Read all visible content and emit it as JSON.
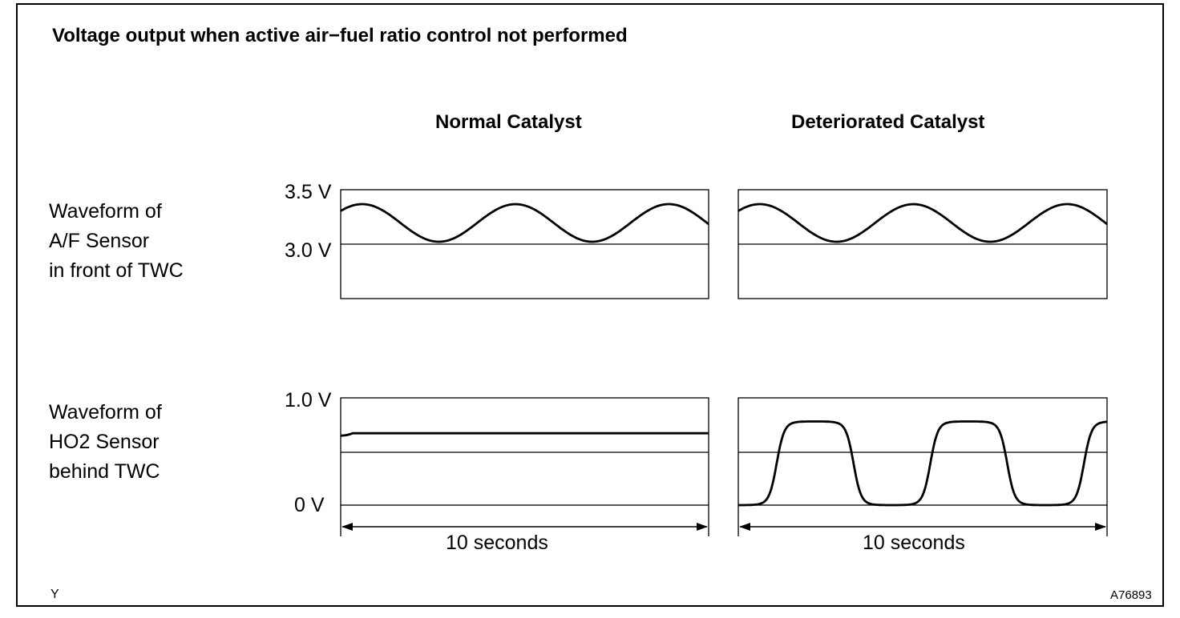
{
  "title": "Voltage output when active air−fuel ratio control not performed",
  "columns": [
    {
      "label": "Normal Catalyst"
    },
    {
      "label": "Deteriorated Catalyst"
    }
  ],
  "rows": [
    {
      "label_lines": [
        "Waveform of",
        "A/F Sensor",
        "in front of TWC"
      ],
      "top_voltage": "3.5 V",
      "mid_voltage": "3.0 V"
    },
    {
      "label_lines": [
        "Waveform of",
        "HO2 Sensor",
        "behind TWC"
      ],
      "top_voltage": "1.0 V",
      "bottom_voltage": "0 V"
    }
  ],
  "time_span_label": "10 seconds",
  "corner_left": "Y",
  "corner_right": "A76893",
  "chart_data": [
    {
      "type": "line",
      "name": "A/F Sensor - Normal Catalyst",
      "shape": "sine",
      "amplitude_range_V": [
        3.0,
        3.35
      ],
      "cycles": 2.4,
      "duration_s": 10
    },
    {
      "type": "line",
      "name": "A/F Sensor - Deteriorated Catalyst",
      "shape": "sine",
      "amplitude_range_V": [
        3.0,
        3.35
      ],
      "cycles": 2.4,
      "duration_s": 10
    },
    {
      "type": "line",
      "name": "HO2 Sensor - Normal Catalyst",
      "shape": "flat",
      "level_V": 0.67,
      "duration_s": 10
    },
    {
      "type": "line",
      "name": "HO2 Sensor - Deteriorated Catalyst",
      "shape": "square-smoothed",
      "amplitude_range_V": [
        0,
        0.78
      ],
      "cycles": 2.4,
      "duration_s": 10
    }
  ]
}
